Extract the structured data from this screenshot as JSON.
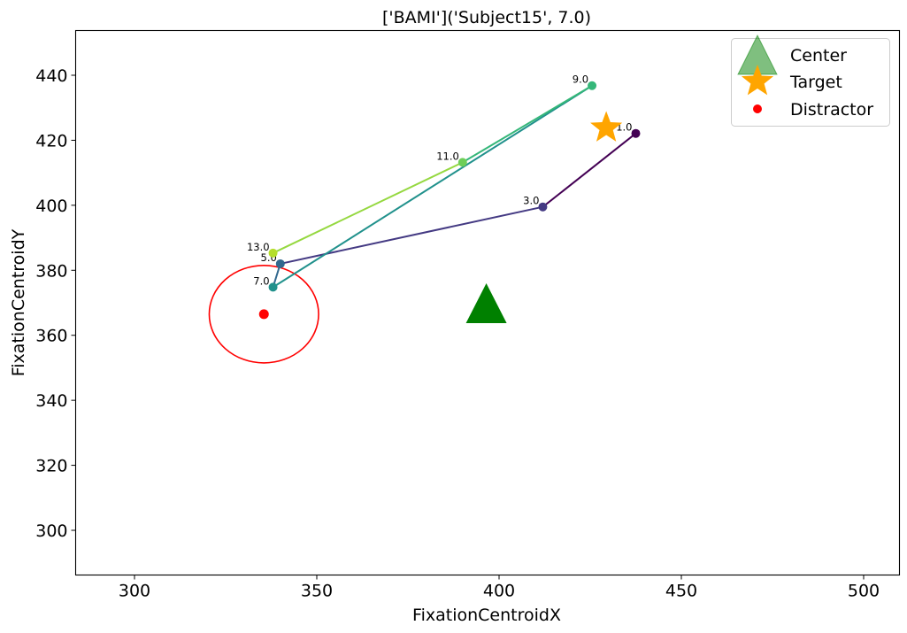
{
  "chart_data": {
    "type": "scatter",
    "title": "['BAMI']('Subject15', 7.0)",
    "xlabel": "FixationCentroidX",
    "ylabel": "FixationCentroidY",
    "xlim": [
      283.8,
      1009.6
    ],
    "ylim": [
      286.7,
      453.8
    ],
    "grid": false,
    "legend_position": "top-right",
    "x_ticks": [
      300,
      350,
      400,
      450,
      500
    ],
    "y_ticks": [
      300,
      320,
      340,
      360,
      380,
      400,
      420,
      440
    ],
    "x_tick_labels": [
      "300",
      "350",
      "400",
      "450",
      "500"
    ],
    "y_tick_labels": [
      "300",
      "320",
      "340",
      "360",
      "380",
      "400",
      "420",
      "440"
    ],
    "fixations": [
      {
        "label": "1.0",
        "x": 437.5,
        "y": 422.1,
        "color": "#440154"
      },
      {
        "label": "3.0",
        "x": 412.0,
        "y": 399.5,
        "color": "#443a83"
      },
      {
        "label": "5.0",
        "x": 340.0,
        "y": 382.0,
        "color": "#31688e"
      },
      {
        "label": "7.0",
        "x": 338.0,
        "y": 374.8,
        "color": "#21918c"
      },
      {
        "label": "9.0",
        "x": 425.5,
        "y": 436.8,
        "color": "#35b779"
      },
      {
        "label": "11.0",
        "x": 390.0,
        "y": 413.2,
        "color": "#6ece58"
      },
      {
        "label": "13.0",
        "x": 338.0,
        "y": 385.3,
        "color": "#b5de2b"
      }
    ],
    "segments": [
      {
        "from": 0,
        "to": 1,
        "color": "#440154"
      },
      {
        "from": 1,
        "to": 2,
        "color": "#443a83"
      },
      {
        "from": 2,
        "to": 3,
        "color": "#31688e"
      },
      {
        "from": 3,
        "to": 4,
        "color": "#21918c"
      },
      {
        "from": 4,
        "to": 5,
        "color": "#35b779"
      },
      {
        "from": 5,
        "to": 6,
        "color": "#95d840"
      }
    ],
    "center": {
      "x": 396.5,
      "y": 368.9,
      "color": "#008000"
    },
    "target": {
      "x": 429.4,
      "y": 423.8,
      "color": "#ffa500"
    },
    "distractor": {
      "x": 335.5,
      "y": 366.5,
      "color": "#ff0000"
    },
    "distractor_circle": {
      "cx": 335.5,
      "cy": 366.5,
      "rx": 15.0,
      "ry": 15.0,
      "color": "#ff0000"
    },
    "legend": [
      {
        "label": "Center",
        "marker": "triangle",
        "color": "#008000"
      },
      {
        "label": "Target",
        "marker": "star",
        "color": "#ffa500"
      },
      {
        "label": "Distractor",
        "marker": "circle",
        "color": "#ff0000"
      }
    ]
  }
}
